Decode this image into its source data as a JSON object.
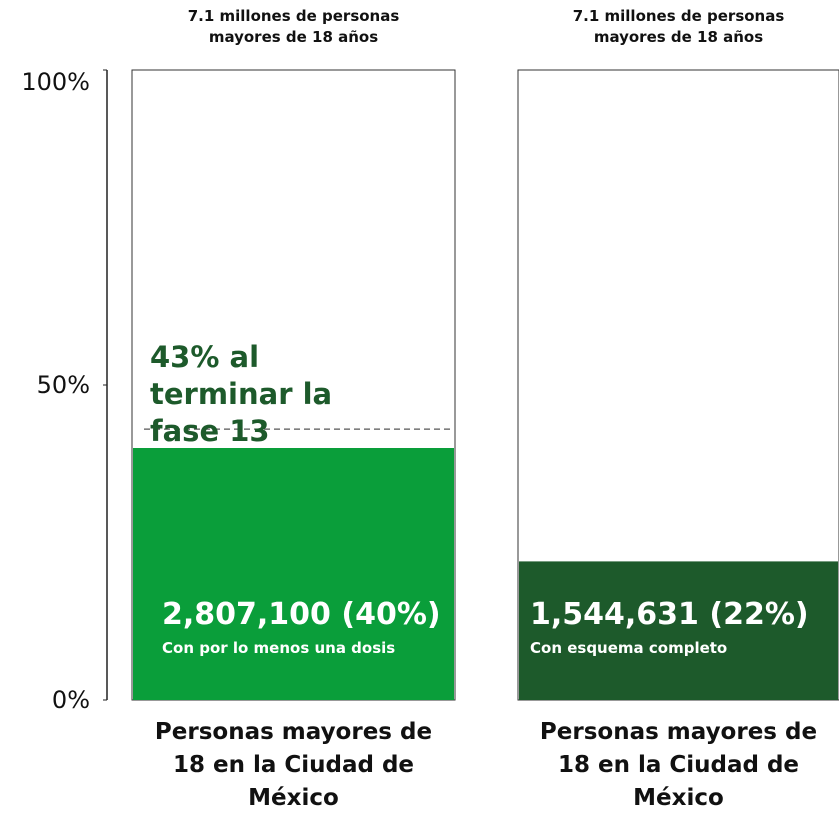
{
  "chart_data": {
    "type": "bar",
    "headers": [
      "7.1 millones de personas mayores de 18 años",
      "7.1 millones de personas mayores de 18 años"
    ],
    "categories": [
      "Personas mayores de 18 en la Ciudad de México",
      "Personas mayores de 18 en la Ciudad de México"
    ],
    "values": [
      40,
      22
    ],
    "value_labels": [
      "2,807,100 (40%)",
      "1,544,631 (22%)"
    ],
    "descriptions": [
      "Con por lo menos una dosis",
      "Con esquema completo"
    ],
    "colors": [
      "#0a9e3a",
      "#1d5a2b"
    ],
    "reference_line": {
      "panel": 0,
      "value": 43,
      "label": "43% al terminar la fase 13",
      "color": "#1d5a2b"
    },
    "ylim": [
      0,
      100
    ],
    "yticks": [
      {
        "value": 0,
        "label": "0%"
      },
      {
        "value": 50,
        "label": "50%"
      },
      {
        "value": 100,
        "label": "100%"
      }
    ]
  }
}
